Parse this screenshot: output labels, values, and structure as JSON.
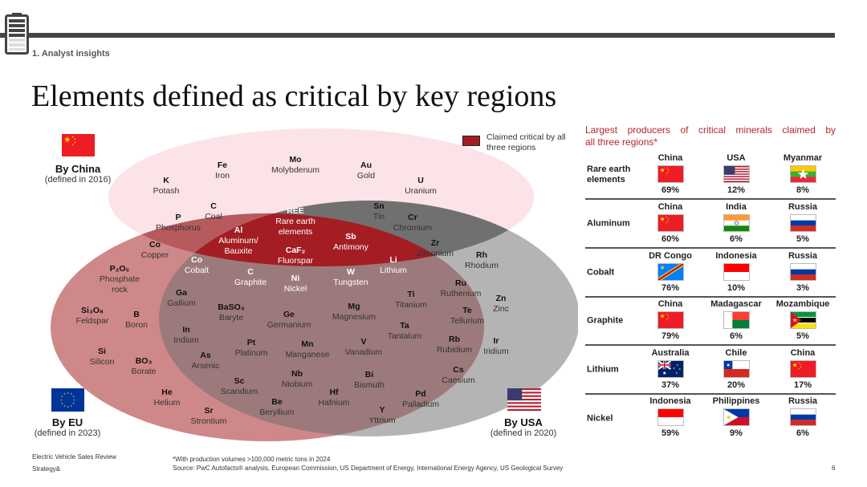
{
  "header": {
    "section": "1. Analyst insights",
    "title": "Elements defined as critical by key regions"
  },
  "legend": {
    "label": "Claimed critical by all three regions",
    "color": "#a31d23"
  },
  "regions": {
    "china": {
      "name": "By China",
      "defined": "(defined in 2016)",
      "flag": "china"
    },
    "eu": {
      "name": "By EU",
      "defined": "(defined in 2023)",
      "flag": "eu"
    },
    "usa": {
      "name": "By USA",
      "defined": "(defined in 2020)",
      "flag": "usa"
    }
  },
  "colors": {
    "china_only": "#fbe3e8",
    "eu_only": "#cf8889",
    "usa_only": "#b4b4b4",
    "china_eu": "#b65a5e",
    "china_usa": "#707070",
    "eu_usa": "#9c7a7b",
    "all_three": "#a31d23"
  },
  "elements": [
    {
      "symbol": "K",
      "name": "Potash",
      "region": "China"
    },
    {
      "symbol": "Fe",
      "name": "Iron",
      "region": "China"
    },
    {
      "symbol": "Mo",
      "name": "Molybdenum",
      "region": "China"
    },
    {
      "symbol": "Au",
      "name": "Gold",
      "region": "China"
    },
    {
      "symbol": "U",
      "name": "Uranium",
      "region": "China"
    },
    {
      "symbol": "C",
      "name": "Coal",
      "region": "China+EU"
    },
    {
      "symbol": "P",
      "name": "Phosphorus",
      "region": "China+EU"
    },
    {
      "symbol": "REE",
      "name": "Rare earth\nelements",
      "region": "All"
    },
    {
      "symbol": "Sn",
      "name": "Tin",
      "region": "China+USA"
    },
    {
      "symbol": "Cr",
      "name": "Chromium",
      "region": "China+USA"
    },
    {
      "symbol": "Al",
      "name": "Aluminum/\nBauxite",
      "region": "All"
    },
    {
      "symbol": "Co",
      "name": "Copper",
      "region": "China+EU"
    },
    {
      "symbol": "Sb",
      "name": "Antimony",
      "region": "All"
    },
    {
      "symbol": "Zr",
      "name": "Zirconium",
      "region": "China+USA"
    },
    {
      "symbol": "Rh",
      "name": "Rhodium",
      "region": "USA"
    },
    {
      "symbol": "CaF₂",
      "name": "Fluorspar",
      "region": "All"
    },
    {
      "symbol": "Co",
      "name": "Cobalt",
      "region": "All"
    },
    {
      "symbol": "Li",
      "name": "Lithium",
      "region": "All"
    },
    {
      "symbol": "P₂O₅",
      "name": "Phosphate\nrock",
      "region": "EU"
    },
    {
      "symbol": "C",
      "name": "Graphite",
      "region": "All"
    },
    {
      "symbol": "W",
      "name": "Tungsten",
      "region": "All"
    },
    {
      "symbol": "Ni",
      "name": "Nickel",
      "region": "All"
    },
    {
      "symbol": "Ru",
      "name": "Ruthenium",
      "region": "USA"
    },
    {
      "symbol": "Ga",
      "name": "Gallium",
      "region": "EU+USA"
    },
    {
      "symbol": "Ti",
      "name": "Titanium",
      "region": "EU+USA"
    },
    {
      "symbol": "Zn",
      "name": "Zinc",
      "region": "USA"
    },
    {
      "symbol": "BaSO₄",
      "name": "Baryte",
      "region": "EU+USA"
    },
    {
      "symbol": "Ge",
      "name": "Germanium",
      "region": "EU+USA"
    },
    {
      "symbol": "Mg",
      "name": "Magnesium",
      "region": "EU+USA"
    },
    {
      "symbol": "Te",
      "name": "Tellurium",
      "region": "USA"
    },
    {
      "symbol": "Si₃O₈",
      "name": "Feldspar",
      "region": "EU"
    },
    {
      "symbol": "B",
      "name": "Boron",
      "region": "EU"
    },
    {
      "symbol": "Ta",
      "name": "Tantalum",
      "region": "EU+USA"
    },
    {
      "symbol": "In",
      "name": "Indium",
      "region": "EU+USA"
    },
    {
      "symbol": "Rb",
      "name": "Rubidium",
      "region": "USA"
    },
    {
      "symbol": "Ir",
      "name": "Iridium",
      "region": "USA"
    },
    {
      "symbol": "Pt",
      "name": "Platinum",
      "region": "EU+USA"
    },
    {
      "symbol": "Mn",
      "name": "Manganese",
      "region": "EU+USA"
    },
    {
      "symbol": "V",
      "name": "Vanadium",
      "region": "EU+USA"
    },
    {
      "symbol": "Si",
      "name": "Silicon",
      "region": "EU"
    },
    {
      "symbol": "BO₃",
      "name": "Borate",
      "region": "EU"
    },
    {
      "symbol": "As",
      "name": "Arsenic",
      "region": "EU+USA"
    },
    {
      "symbol": "Cs",
      "name": "Caesium",
      "region": "USA"
    },
    {
      "symbol": "Sc",
      "name": "Scandium",
      "region": "EU+USA"
    },
    {
      "symbol": "Nb",
      "name": "Niobium",
      "region": "EU+USA"
    },
    {
      "symbol": "Bi",
      "name": "Bismuth",
      "region": "EU+USA"
    },
    {
      "symbol": "He",
      "name": "Helium",
      "region": "EU"
    },
    {
      "symbol": "Hf",
      "name": "Hafnium",
      "region": "EU+USA"
    },
    {
      "symbol": "Pd",
      "name": "Palladium",
      "region": "USA"
    },
    {
      "symbol": "Be",
      "name": "Beryllium",
      "region": "EU+USA"
    },
    {
      "symbol": "Sr",
      "name": "Strontium",
      "region": "EU"
    },
    {
      "symbol": "Y",
      "name": "Yttrium",
      "region": "USA"
    }
  ],
  "producers": {
    "title_line1": "Largest producers of critical minerals claimed by",
    "title_line2": "all three regions*",
    "rows": [
      {
        "mineral": "Rare earth\nelements",
        "producers": [
          {
            "country": "China",
            "flag": "china",
            "share": "69%"
          },
          {
            "country": "USA",
            "flag": "usa",
            "share": "12%"
          },
          {
            "country": "Myanmar",
            "flag": "myanmar",
            "share": "8%"
          }
        ]
      },
      {
        "mineral": "Aluminum",
        "producers": [
          {
            "country": "China",
            "flag": "china",
            "share": "60%"
          },
          {
            "country": "India",
            "flag": "india",
            "share": "6%"
          },
          {
            "country": "Russia",
            "flag": "russia",
            "share": "5%"
          }
        ]
      },
      {
        "mineral": "Cobalt",
        "producers": [
          {
            "country": "DR Congo",
            "flag": "drc",
            "share": "76%"
          },
          {
            "country": "Indonesia",
            "flag": "indonesia",
            "share": "10%"
          },
          {
            "country": "Russia",
            "flag": "russia",
            "share": "3%"
          }
        ]
      },
      {
        "mineral": "Graphite",
        "producers": [
          {
            "country": "China",
            "flag": "china",
            "share": "79%"
          },
          {
            "country": "Madagascar",
            "flag": "madagascar",
            "share": "6%"
          },
          {
            "country": "Mozambique",
            "flag": "mozambique",
            "share": "5%"
          }
        ]
      },
      {
        "mineral": "Lithium",
        "producers": [
          {
            "country": "Australia",
            "flag": "australia",
            "share": "37%"
          },
          {
            "country": "Chile",
            "flag": "chile",
            "share": "20%"
          },
          {
            "country": "China",
            "flag": "china",
            "share": "17%"
          }
        ]
      },
      {
        "mineral": "Nickel",
        "producers": [
          {
            "country": "Indonesia",
            "flag": "indonesia",
            "share": "59%"
          },
          {
            "country": "Philippines",
            "flag": "philippines",
            "share": "9%"
          },
          {
            "country": "Russia",
            "flag": "russia",
            "share": "6%"
          }
        ]
      }
    ]
  },
  "footer": {
    "doc": "Electric Vehicle Sales Review",
    "brand": "Strategy&",
    "note": "*With production volumes >100,000 metric tons in 2024",
    "source": "Source: PwC Autofacts® analysis, European Commission, US Department of Energy, International Energy Agency, US Geological Survey",
    "page": "6"
  }
}
